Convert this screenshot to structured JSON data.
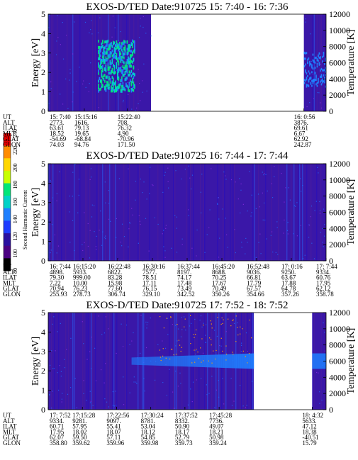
{
  "colorbar": {
    "label": "Second Harmonic Current",
    "ticks": [
      "80",
      "100",
      "120",
      "140",
      "160",
      "180",
      "200",
      "220",
      "240"
    ],
    "colors": [
      "#000000",
      "#4b0082",
      "#2a0fa0",
      "#1e3cff",
      "#1f80ff",
      "#00d2c8",
      "#00e678",
      "#c8ff00",
      "#ffd700",
      "#ff8c00",
      "#e00000"
    ]
  },
  "chart_data": [
    {
      "type": "heatmap",
      "title": "EXOS-D/TED   Date:910725  15: 7:40 - 16: 7:36",
      "ylabel": "Energy [eV]",
      "y2label": "Temperature [K]",
      "ylim": [
        0,
        5
      ],
      "yticks": [
        "0",
        "1",
        "2",
        "3",
        "4",
        "5"
      ],
      "y2lim": [
        0,
        12000
      ],
      "y2ticks": [
        "0",
        "2000",
        "4000",
        "6000",
        "8000",
        "10000",
        "12000"
      ],
      "segments": [
        [
          0.0,
          0.37
        ],
        [
          0.92,
          1.0
        ]
      ],
      "hotspots": [
        {
          "x": 0.24,
          "y": 2.4,
          "level": 0.7
        }
      ],
      "rows": [
        {
          "label": "UT",
          "values": [
            "15: 7:40",
            "15:15:16",
            "15:22:40",
            "16: 0:56"
          ]
        },
        {
          "label": "ALT",
          "values": [
            "2773.",
            "1616.",
            "708.",
            "3876."
          ]
        },
        {
          "label": "ILAT",
          "values": [
            "63.61",
            "79.13",
            "76.32",
            "69.61"
          ]
        },
        {
          "label": "MLT",
          "values": [
            "18.52",
            "19.65",
            "4.90",
            "6.67"
          ]
        },
        {
          "label": "GLAT",
          "values": [
            "-54.69",
            "-68.84",
            "-70.96",
            "62.92"
          ]
        },
        {
          "label": "GLON",
          "values": [
            "74.03",
            "94.76",
            "171.50",
            "242.87"
          ]
        }
      ],
      "row_x": [
        0.0,
        0.13,
        0.285,
        0.92
      ]
    },
    {
      "type": "heatmap",
      "title": "EXOS-D/TED   Date:910725  16: 7:44 - 17: 7:44",
      "ylabel": "Energy [eV]",
      "y2label": "Temperature [K]",
      "ylim": [
        0,
        5
      ],
      "yticks": [
        "0",
        "1",
        "2",
        "3",
        "4",
        "5"
      ],
      "y2lim": [
        0,
        12000
      ],
      "y2ticks": [
        "0",
        "2000",
        "4000",
        "6000",
        "8000",
        "10000",
        "12000"
      ],
      "segments": [
        [
          0.0,
          1.0
        ]
      ],
      "rows": [
        {
          "label": "UT",
          "values": [
            "16: 7:44",
            "16:15:20",
            "16:22:48",
            "16:30:16",
            "16:37:44",
            "16:45:20",
            "16:52:48",
            "17: 0:16",
            "17: 7:44"
          ]
        },
        {
          "label": "ALT",
          "values": [
            "4898.",
            "5933.",
            "6822.",
            "7577.",
            "8197.",
            "8688.",
            "9036.",
            "9250.",
            "9334."
          ]
        },
        {
          "label": "ILAT",
          "values": [
            "79.30",
            "999.00",
            "83.28",
            "78.51",
            "74.17",
            "70.25",
            "66.81",
            "63.67",
            "60.76"
          ]
        },
        {
          "label": "MLT",
          "values": [
            "7.22",
            "10.00",
            "15.98",
            "17.11",
            "17.48",
            "17.67",
            "17.79",
            "17.88",
            "17.95"
          ]
        },
        {
          "label": "GLAT",
          "values": [
            "70.94",
            "76.23",
            "77.60",
            "76.15",
            "73.49",
            "70.49",
            "67.57",
            "64.78",
            "62.12"
          ]
        },
        {
          "label": "GLON",
          "values": [
            "255.93",
            "278.73",
            "306.74",
            "329.10",
            "342.52",
            "350.26",
            "354.66",
            "357.26",
            "358.78"
          ]
        }
      ],
      "row_x": [
        0.0,
        0.125,
        0.25,
        0.375,
        0.5,
        0.625,
        0.75,
        0.875,
        1.0
      ]
    },
    {
      "type": "heatmap",
      "title": "EXOS-D/TED   Date:910725  17: 7:52 - 18: 7:52",
      "ylabel": "Energy [eV]",
      "y2label": "Temperature [K]",
      "ylim": [
        0,
        5
      ],
      "yticks": [
        "0",
        "1",
        "2",
        "3",
        "4",
        "5"
      ],
      "y2lim": [
        0,
        12000
      ],
      "y2ticks": [
        "0",
        "2000",
        "4000",
        "6000",
        "8000",
        "10000",
        "12000"
      ],
      "segments": [
        [
          0.0,
          0.74
        ],
        [
          0.95,
          1.0
        ]
      ],
      "band": {
        "from": 0.3,
        "to": 0.74,
        "y_low": 2.1,
        "y_high": 2.9
      },
      "rows": [
        {
          "label": "UT",
          "values": [
            "17: 7:52",
            "17:15:28",
            "17:22:56",
            "17:30:24",
            "17:37:52",
            "17:45:28",
            "18: 4:32"
          ]
        },
        {
          "label": "ALT",
          "values": [
            "9334.",
            "9281.",
            "9097.",
            "8781.",
            "8332.",
            "7736.",
            "5633."
          ]
        },
        {
          "label": "ILAT",
          "values": [
            "60.71",
            "57.95",
            "55.41",
            "53.04",
            "50.90",
            "49.07",
            "47.12"
          ]
        },
        {
          "label": "MLT",
          "values": [
            "17.95",
            "18.02",
            "18.07",
            "18.12",
            "18.17",
            "18.21",
            "18.38"
          ]
        },
        {
          "label": "GLAT",
          "values": [
            "62.07",
            "59.50",
            "57.11",
            "54.85",
            "52.79",
            "50.98",
            "-40.51"
          ]
        },
        {
          "label": "GLON",
          "values": [
            "358.80",
            "359.62",
            "359.96",
            "359.98",
            "359.73",
            "359.24",
            "15.79"
          ]
        }
      ],
      "row_x": [
        0.0,
        0.123,
        0.246,
        0.369,
        0.492,
        0.615,
        0.95
      ]
    }
  ]
}
